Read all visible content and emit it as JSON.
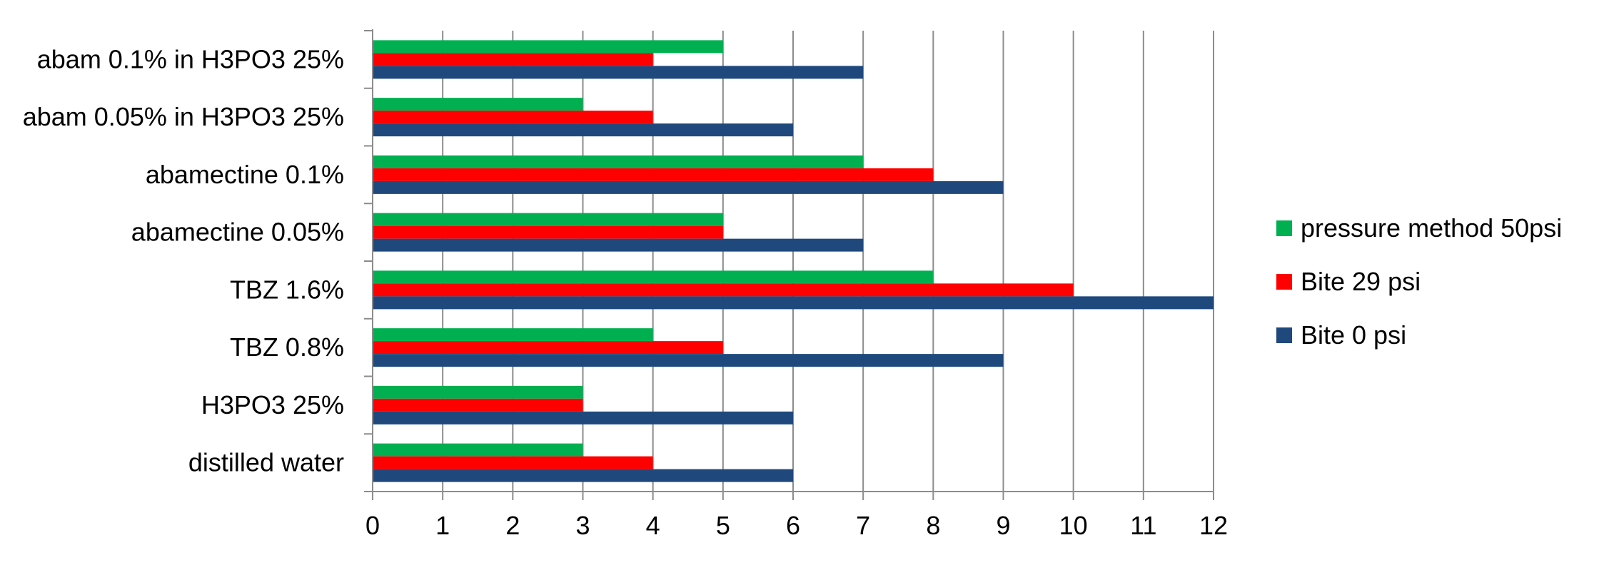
{
  "chart_data": {
    "type": "bar",
    "orientation": "horizontal",
    "categories": [
      "abam 0.1% in H3PO3 25%",
      "abam 0.05% in H3PO3 25%",
      "abamectine 0.1%",
      "abamectine 0.05%",
      "TBZ 1.6%",
      "TBZ 0.8%",
      "H3PO3 25%",
      "distilled water"
    ],
    "series": [
      {
        "name": "pressure method 50psi",
        "color": "#00b050",
        "values": [
          5,
          3,
          7,
          5,
          8,
          4,
          3,
          3
        ]
      },
      {
        "name": "Bite 29 psi",
        "color": "#ff0000",
        "values": [
          4,
          4,
          8,
          5,
          10,
          5,
          3,
          4
        ]
      },
      {
        "name": "Bite 0 psi",
        "color": "#1f497d",
        "values": [
          7,
          6,
          9,
          7,
          12,
          9,
          6,
          6
        ]
      }
    ],
    "xlim": [
      0,
      12
    ],
    "xticks": [
      "0",
      "1",
      "2",
      "3",
      "4",
      "5",
      "6",
      "7",
      "8",
      "9",
      "10",
      "11",
      "12"
    ],
    "grid": true,
    "legend_position": "right",
    "title": "",
    "xlabel": "",
    "ylabel": ""
  }
}
